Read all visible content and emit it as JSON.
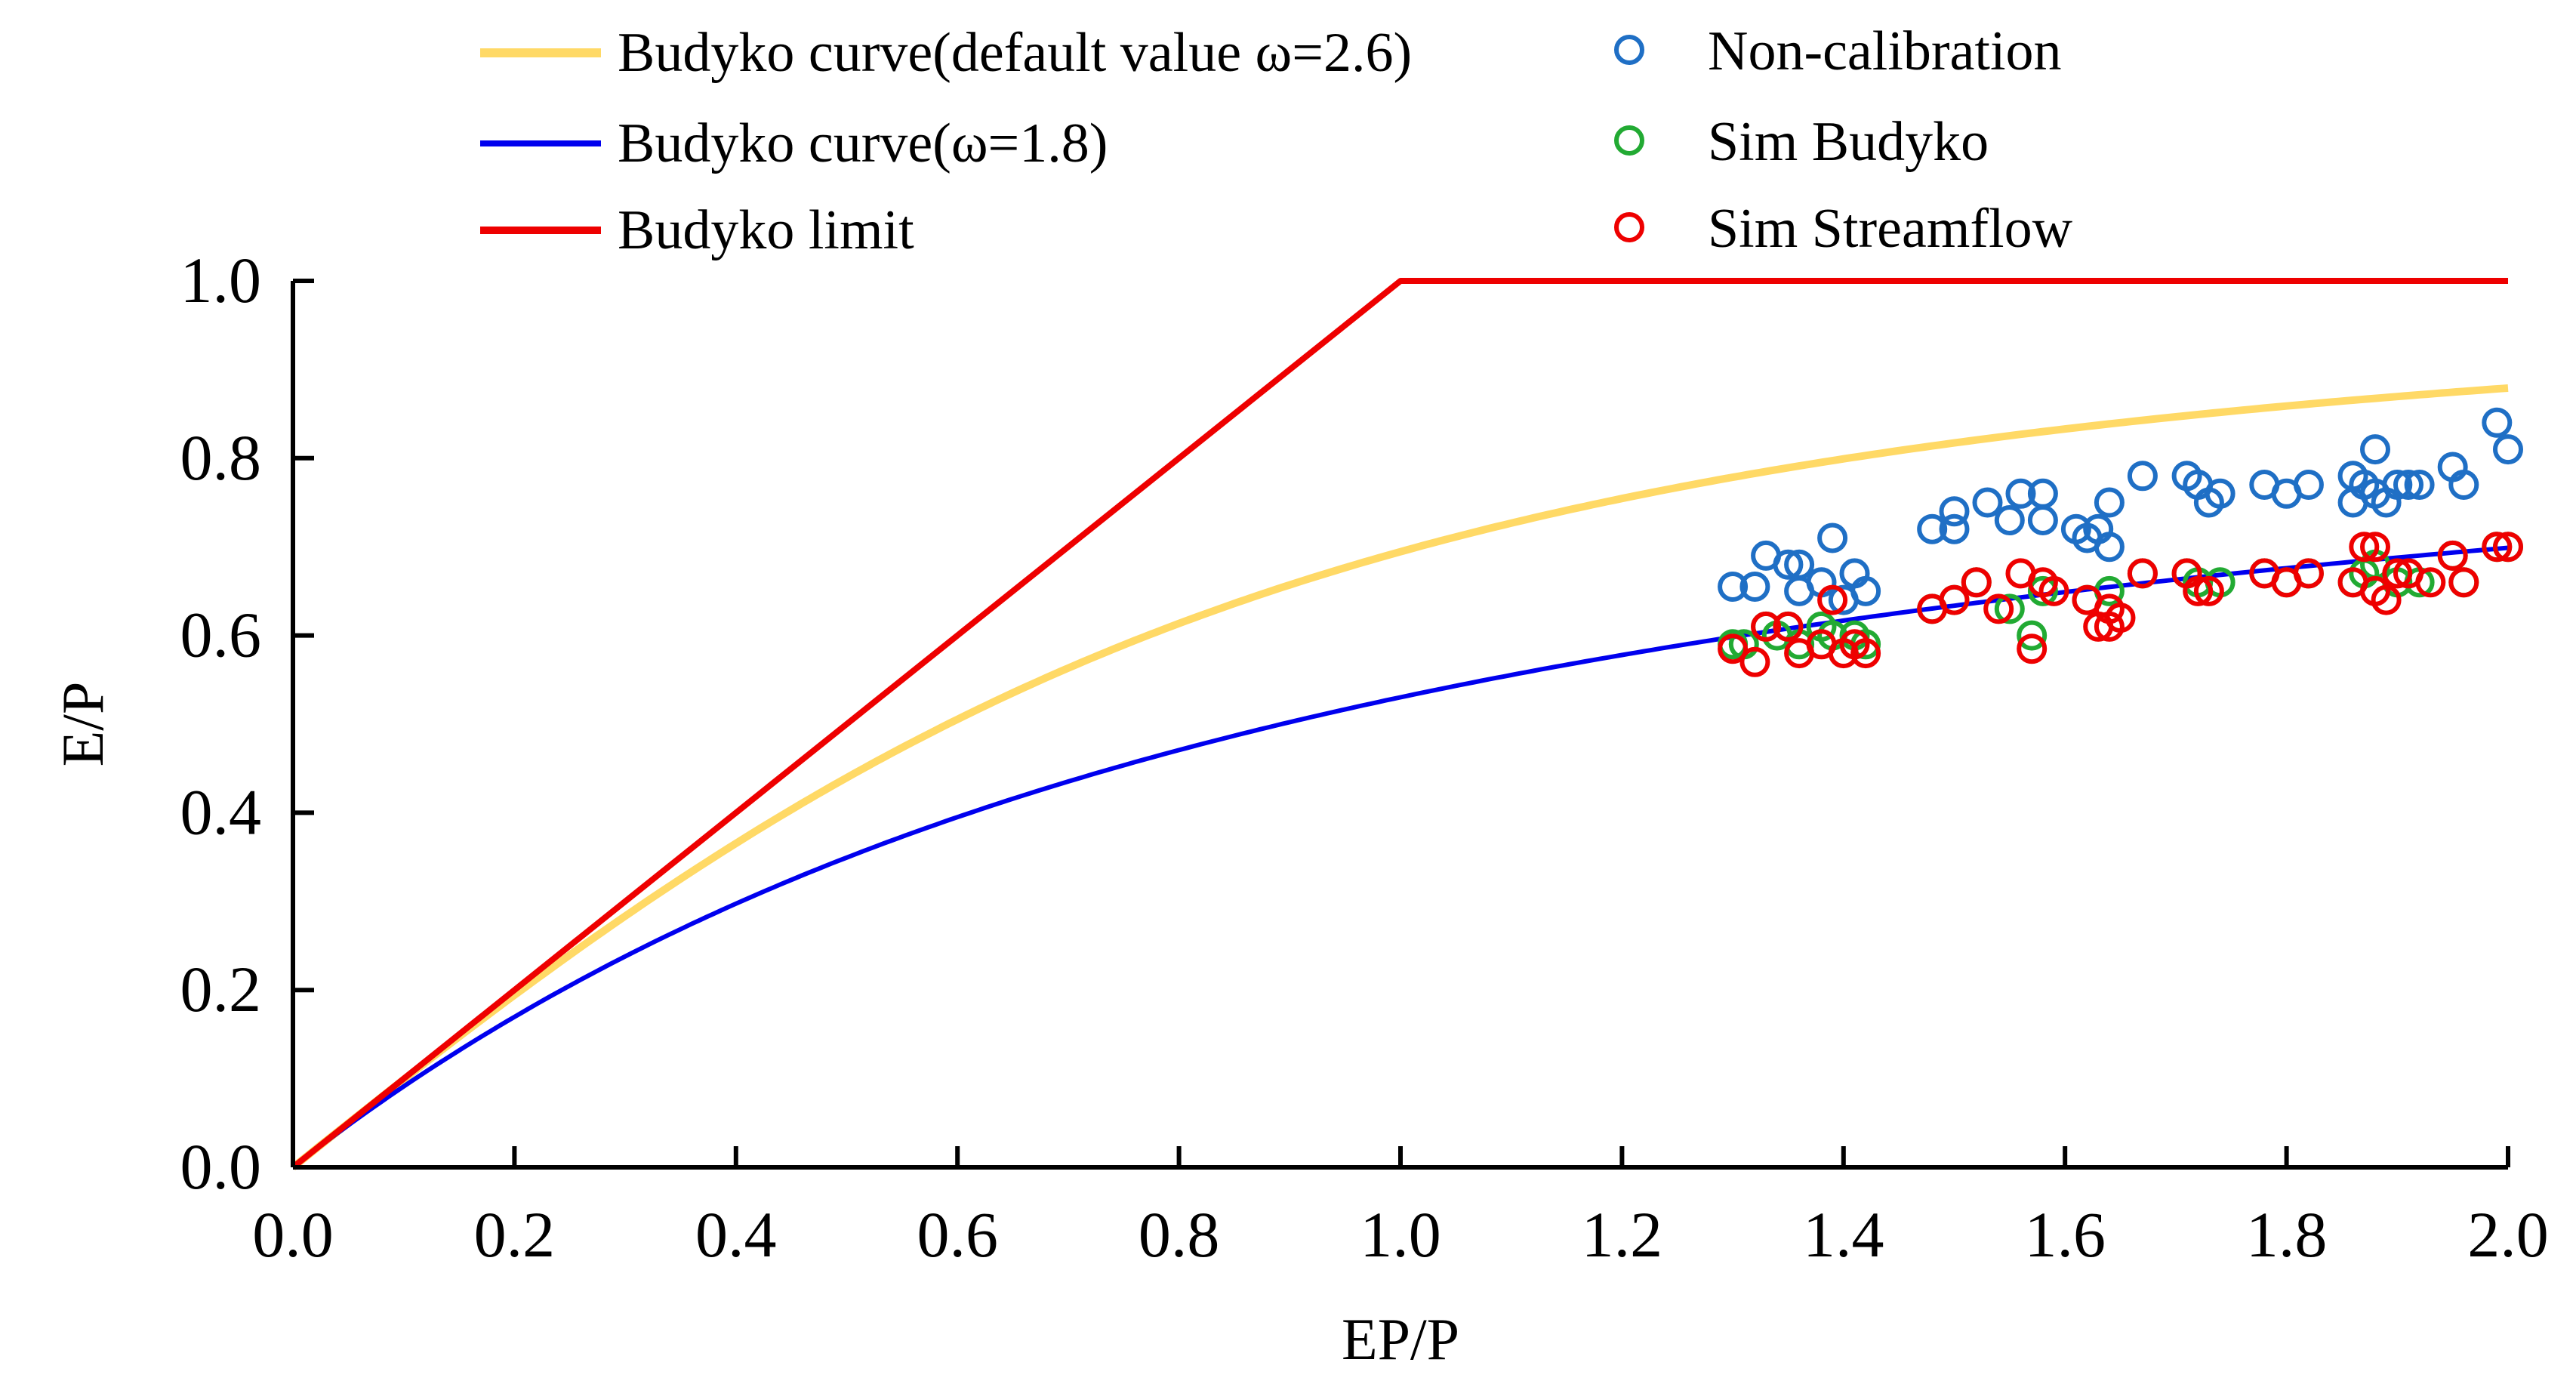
{
  "chart_data": {
    "type": "line+scatter",
    "title": "",
    "xlabel": "EP/P",
    "ylabel": "E/P",
    "xlim": [
      0.0,
      2.0
    ],
    "ylim": [
      0.0,
      1.0
    ],
    "xticks": [
      "0.0",
      "0.2",
      "0.4",
      "0.6",
      "0.8",
      "1.0",
      "1.2",
      "1.4",
      "1.6",
      "1.8",
      "2.0"
    ],
    "yticks": [
      "0.0",
      "0.2",
      "0.4",
      "0.6",
      "0.8",
      "1.0"
    ],
    "grid": false,
    "legend_position": "top",
    "lines": [
      {
        "name": "Budyko curve(default value ω=2.6)",
        "omega": 2.6,
        "color": "#FFD966",
        "x_range": [
          0.0,
          2.0
        ]
      },
      {
        "name": "Budyko curve(ω=1.8)",
        "omega": 1.8,
        "color": "#0000EE",
        "x_range": [
          0.0,
          2.0
        ]
      },
      {
        "name": "Budyko limit",
        "color": "#EE0000",
        "points": [
          [
            0.0,
            0.0
          ],
          [
            1.0,
            1.0
          ],
          [
            2.0,
            1.0
          ]
        ]
      }
    ],
    "series": [
      {
        "name": "Non-calibration",
        "color": "#1F6FC5",
        "points": [
          [
            1.3,
            0.655
          ],
          [
            1.32,
            0.655
          ],
          [
            1.33,
            0.69
          ],
          [
            1.35,
            0.68
          ],
          [
            1.36,
            0.65
          ],
          [
            1.36,
            0.68
          ],
          [
            1.38,
            0.66
          ],
          [
            1.39,
            0.71
          ],
          [
            1.4,
            0.64
          ],
          [
            1.41,
            0.67
          ],
          [
            1.42,
            0.65
          ],
          [
            1.48,
            0.72
          ],
          [
            1.5,
            0.72
          ],
          [
            1.5,
            0.74
          ],
          [
            1.53,
            0.75
          ],
          [
            1.55,
            0.73
          ],
          [
            1.56,
            0.76
          ],
          [
            1.58,
            0.76
          ],
          [
            1.58,
            0.73
          ],
          [
            1.61,
            0.72
          ],
          [
            1.62,
            0.71
          ],
          [
            1.63,
            0.72
          ],
          [
            1.64,
            0.7
          ],
          [
            1.64,
            0.75
          ],
          [
            1.67,
            0.78
          ],
          [
            1.71,
            0.78
          ],
          [
            1.72,
            0.77
          ],
          [
            1.73,
            0.75
          ],
          [
            1.74,
            0.76
          ],
          [
            1.78,
            0.77
          ],
          [
            1.8,
            0.76
          ],
          [
            1.82,
            0.77
          ],
          [
            1.86,
            0.75
          ],
          [
            1.86,
            0.78
          ],
          [
            1.87,
            0.77
          ],
          [
            1.88,
            0.81
          ],
          [
            1.88,
            0.76
          ],
          [
            1.89,
            0.75
          ],
          [
            1.9,
            0.77
          ],
          [
            1.91,
            0.77
          ],
          [
            1.92,
            0.77
          ],
          [
            1.95,
            0.79
          ],
          [
            1.96,
            0.77
          ],
          [
            1.99,
            0.84
          ],
          [
            2.0,
            0.81
          ]
        ]
      },
      {
        "name": "Sim Budyko",
        "color": "#22AA33",
        "points": [
          [
            1.3,
            0.59
          ],
          [
            1.31,
            0.59
          ],
          [
            1.33,
            0.61
          ],
          [
            1.34,
            0.6
          ],
          [
            1.35,
            0.61
          ],
          [
            1.36,
            0.59
          ],
          [
            1.38,
            0.61
          ],
          [
            1.39,
            0.6
          ],
          [
            1.41,
            0.6
          ],
          [
            1.42,
            0.59
          ],
          [
            1.48,
            0.63
          ],
          [
            1.5,
            0.64
          ],
          [
            1.52,
            0.66
          ],
          [
            1.55,
            0.63
          ],
          [
            1.57,
            0.6
          ],
          [
            1.58,
            0.65
          ],
          [
            1.62,
            0.64
          ],
          [
            1.64,
            0.65
          ],
          [
            1.67,
            0.67
          ],
          [
            1.71,
            0.67
          ],
          [
            1.72,
            0.66
          ],
          [
            1.74,
            0.66
          ],
          [
            1.78,
            0.67
          ],
          [
            1.8,
            0.66
          ],
          [
            1.82,
            0.67
          ],
          [
            1.86,
            0.66
          ],
          [
            1.87,
            0.67
          ],
          [
            1.88,
            0.68
          ],
          [
            1.9,
            0.66
          ],
          [
            1.92,
            0.66
          ],
          [
            1.95,
            0.69
          ],
          [
            1.96,
            0.66
          ],
          [
            1.99,
            0.7
          ],
          [
            2.0,
            0.7
          ]
        ]
      },
      {
        "name": "Sim Streamflow",
        "color": "#EE0000",
        "points": [
          [
            1.3,
            0.585
          ],
          [
            1.32,
            0.57
          ],
          [
            1.33,
            0.61
          ],
          [
            1.35,
            0.61
          ],
          [
            1.36,
            0.58
          ],
          [
            1.38,
            0.59
          ],
          [
            1.39,
            0.64
          ],
          [
            1.4,
            0.58
          ],
          [
            1.41,
            0.59
          ],
          [
            1.42,
            0.58
          ],
          [
            1.48,
            0.63
          ],
          [
            1.5,
            0.64
          ],
          [
            1.52,
            0.66
          ],
          [
            1.54,
            0.63
          ],
          [
            1.56,
            0.67
          ],
          [
            1.57,
            0.585
          ],
          [
            1.58,
            0.66
          ],
          [
            1.59,
            0.65
          ],
          [
            1.62,
            0.64
          ],
          [
            1.63,
            0.61
          ],
          [
            1.64,
            0.63
          ],
          [
            1.64,
            0.61
          ],
          [
            1.65,
            0.62
          ],
          [
            1.67,
            0.67
          ],
          [
            1.71,
            0.67
          ],
          [
            1.72,
            0.65
          ],
          [
            1.73,
            0.65
          ],
          [
            1.78,
            0.67
          ],
          [
            1.8,
            0.66
          ],
          [
            1.82,
            0.67
          ],
          [
            1.86,
            0.66
          ],
          [
            1.87,
            0.7
          ],
          [
            1.88,
            0.7
          ],
          [
            1.88,
            0.65
          ],
          [
            1.89,
            0.64
          ],
          [
            1.9,
            0.67
          ],
          [
            1.91,
            0.67
          ],
          [
            1.93,
            0.66
          ],
          [
            1.95,
            0.69
          ],
          [
            1.96,
            0.66
          ],
          [
            1.99,
            0.7
          ],
          [
            2.0,
            0.7
          ]
        ]
      }
    ]
  }
}
